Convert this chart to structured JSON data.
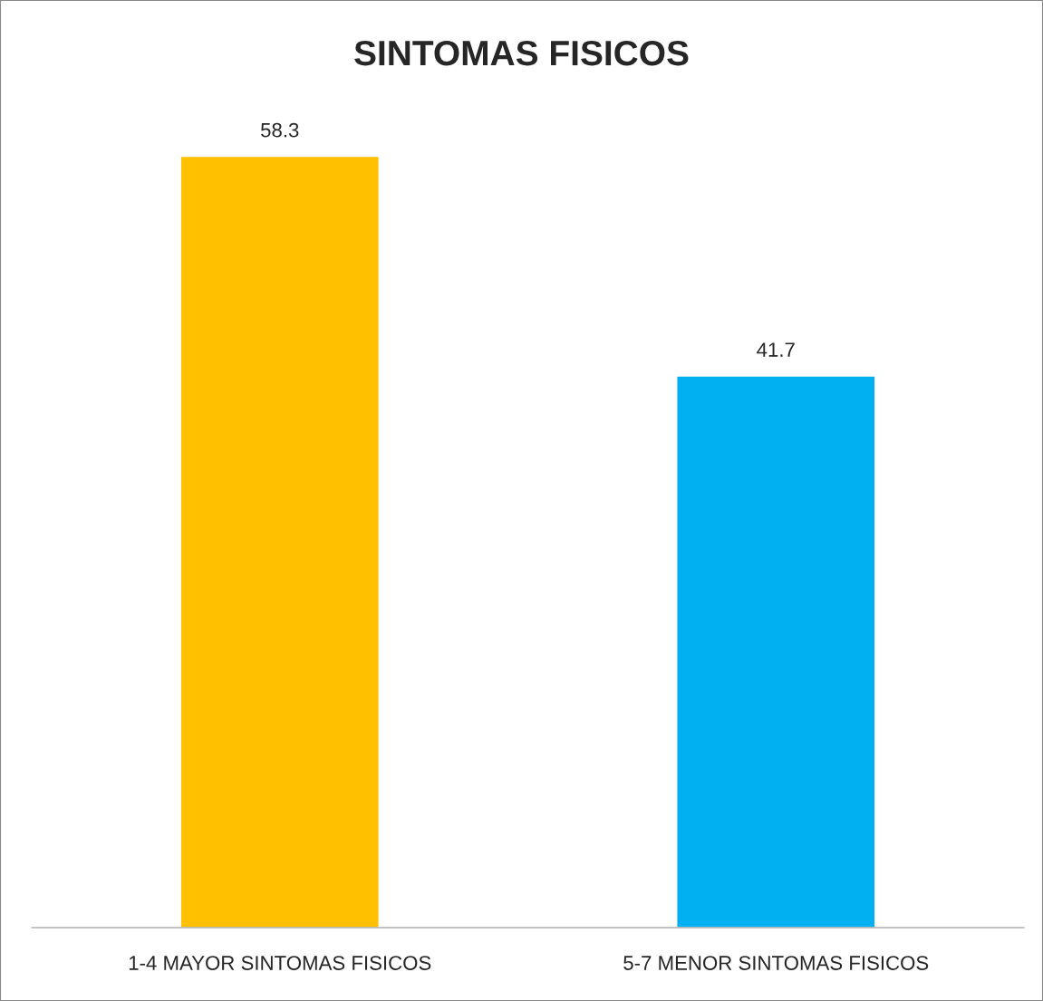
{
  "chart_data": {
    "type": "bar",
    "title": "SINTOMAS FISICOS",
    "categories": [
      "1-4 MAYOR SINTOMAS FISICOS",
      "5-7 MENOR SINTOMAS FISICOS"
    ],
    "values": [
      58.3,
      41.7
    ],
    "colors": [
      "#ffc000",
      "#00b0f0"
    ],
    "data_labels": true,
    "tick_labels": "x",
    "grid": false,
    "legend": false
  }
}
